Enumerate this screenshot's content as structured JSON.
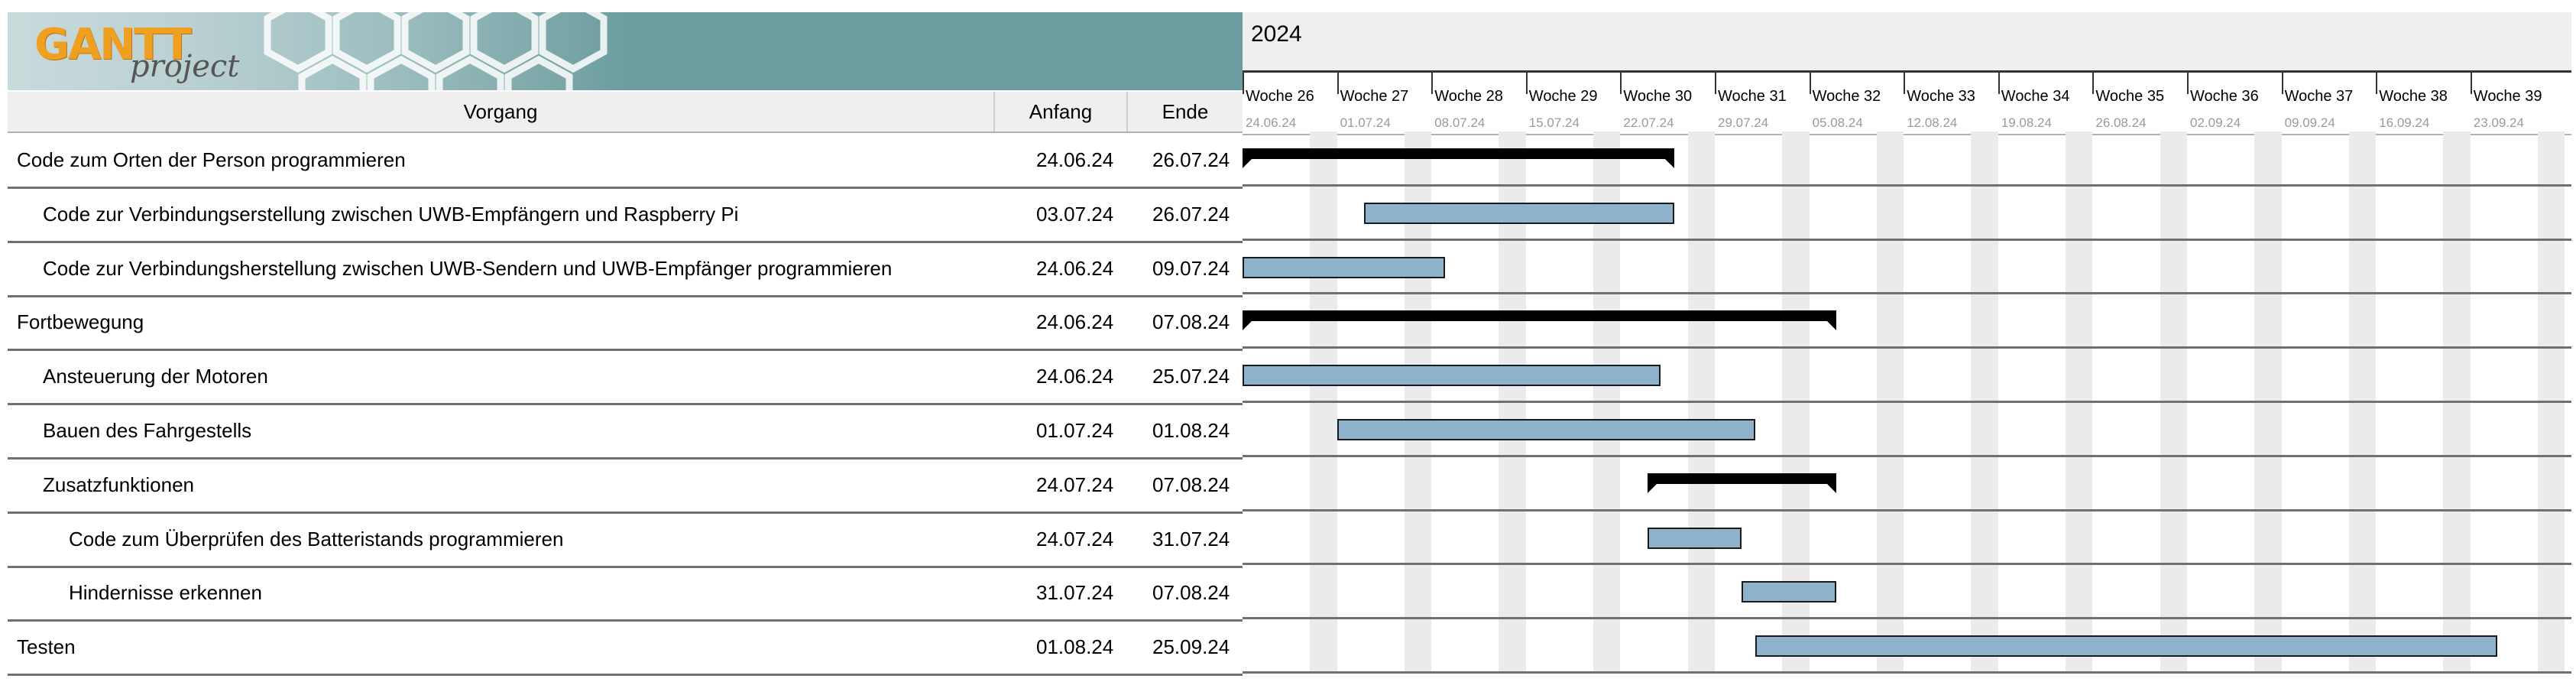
{
  "logo": {
    "brand": "GANTT",
    "sub": "project"
  },
  "table": {
    "headers": {
      "task": "Vorgang",
      "start": "Anfang",
      "end": "Ende"
    }
  },
  "tasks": [
    {
      "name": "Code zum Orten der Person programmieren",
      "start": "24.06.24",
      "end": "26.07.24",
      "level": 0,
      "summary": true
    },
    {
      "name": "Code zur Verbindungserstellung zwischen UWB-Empfängern und Raspberry Pi",
      "start": "03.07.24",
      "end": "26.07.24",
      "level": 1,
      "summary": false
    },
    {
      "name": "Code zur Verbindungsherstellung zwischen UWB-Sendern und UWB-Empfänger programmieren",
      "start": "24.06.24",
      "end": "09.07.24",
      "level": 1,
      "summary": false
    },
    {
      "name": "Fortbewegung",
      "start": "24.06.24",
      "end": "07.08.24",
      "level": 0,
      "summary": true
    },
    {
      "name": "Ansteuerung der Motoren",
      "start": "24.06.24",
      "end": "25.07.24",
      "level": 1,
      "summary": false
    },
    {
      "name": "Bauen des Fahrgestells",
      "start": "01.07.24",
      "end": "01.08.24",
      "level": 1,
      "summary": false
    },
    {
      "name": "Zusatzfunktionen",
      "start": "24.07.24",
      "end": "07.08.24",
      "level": 1,
      "summary": true
    },
    {
      "name": "Code zum Überprüfen des Batteristands programmieren",
      "start": "24.07.24",
      "end": "31.07.24",
      "level": 2,
      "summary": false
    },
    {
      "name": "Hindernisse erkennen",
      "start": "31.07.24",
      "end": "07.08.24",
      "level": 2,
      "summary": false
    },
    {
      "name": "Testen",
      "start": "01.08.24",
      "end": "25.09.24",
      "level": 0,
      "summary": false
    }
  ],
  "timeline": {
    "year": "2024",
    "weeks": [
      {
        "name": "Woche 26",
        "date": "24.06.24"
      },
      {
        "name": "Woche 27",
        "date": "01.07.24"
      },
      {
        "name": "Woche 28",
        "date": "08.07.24"
      },
      {
        "name": "Woche 29",
        "date": "15.07.24"
      },
      {
        "name": "Woche 30",
        "date": "22.07.24"
      },
      {
        "name": "Woche 31",
        "date": "29.07.24"
      },
      {
        "name": "Woche 32",
        "date": "05.08.24"
      },
      {
        "name": "Woche 33",
        "date": "12.08.24"
      },
      {
        "name": "Woche 34",
        "date": "19.08.24"
      },
      {
        "name": "Woche 35",
        "date": "26.08.24"
      },
      {
        "name": "Woche 36",
        "date": "02.09.24"
      },
      {
        "name": "Woche 37",
        "date": "09.09.24"
      },
      {
        "name": "Woche 38",
        "date": "16.09.24"
      },
      {
        "name": "Woche 39",
        "date": "23.09.24"
      }
    ]
  },
  "colors": {
    "bar": "#8eb2cc",
    "summary": "#000000",
    "banner": "#6b9c9e",
    "logo": "#f0a020",
    "weekend": "#ebebeb"
  }
}
